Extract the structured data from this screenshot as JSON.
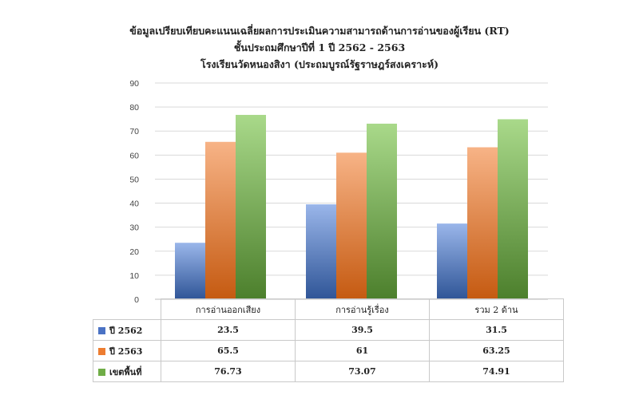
{
  "title_lines": [
    "ข้อมูลเปรียบเทียบคะแนนเฉลี่ยผลการประเมินความสามารถด้านการอ่านของผู้เรียน (RT)",
    "ชั้นประถมศึกษาปีที่ 1 ปี 2562 - 2563",
    "โรงเรียนวัดหนองสิงา (ประถมบูรณ์รัฐราษฎร์สงเคราะห์)"
  ],
  "chart_data": {
    "type": "bar",
    "title": "ข้อมูลเปรียบเทียบคะแนนเฉลี่ยผลการประเมินความสามารถด้านการอ่านของผู้เรียน (RT) ชั้นประถมศึกษาปีที่ 1 ปี 2562 - 2563 โรงเรียนวัดหนองสิงา (ประถมบูรณ์รัฐราษฎร์สงเคราะห์)",
    "categories": [
      "การอ่านออกเสียง",
      "การอ่านรู้เรื่อง",
      "รวม 2 ด้าน"
    ],
    "series": [
      {
        "name": "ปี 2562",
        "values": [
          23.5,
          39.5,
          31.5
        ],
        "color": "#4a72c4",
        "labels": [
          "23.5",
          "39.5",
          "31.5"
        ]
      },
      {
        "name": "ปี 2563",
        "values": [
          65.5,
          61,
          63.25
        ],
        "color": "#ed7d31",
        "labels": [
          "65.5",
          "61",
          "63.25"
        ]
      },
      {
        "name": "เขตพื้นที่",
        "values": [
          76.73,
          73.07,
          74.91
        ],
        "color": "#70ad47",
        "labels": [
          "76.73",
          "73.07",
          "74.91"
        ]
      }
    ],
    "ylim": [
      0,
      90
    ],
    "yticks": [
      0,
      10,
      20,
      30,
      40,
      50,
      60,
      70,
      80,
      90
    ],
    "grid": true,
    "legend": "data-table"
  }
}
